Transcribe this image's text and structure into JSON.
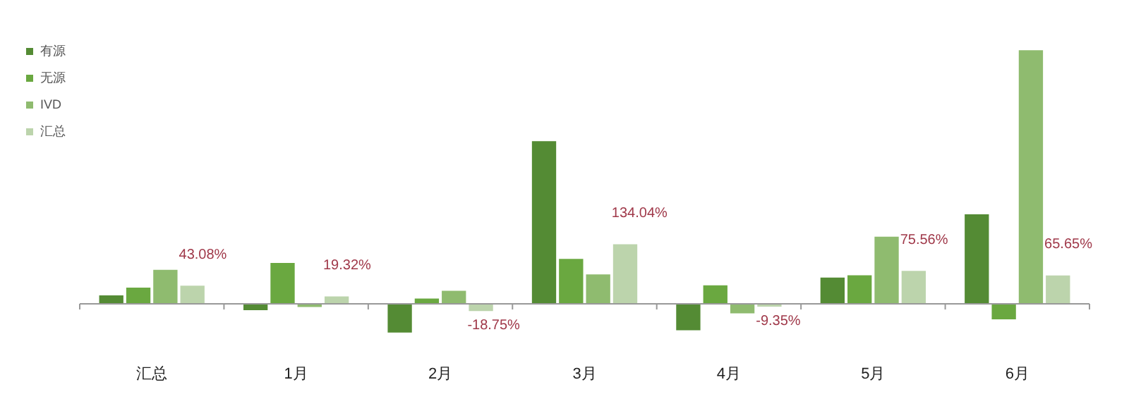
{
  "chart_data": {
    "type": "bar",
    "tick_labels": "x",
    "legend": "left",
    "categories": [
      "汇总",
      "1月",
      "2月",
      "3月",
      "4月",
      "5月",
      "6月"
    ],
    "series": [
      {
        "name": "有源",
        "color": "#548b34",
        "values": [
          22,
          -17,
          -66,
          361,
          -61,
          61,
          200
        ]
      },
      {
        "name": "无源",
        "color": "#6aa840",
        "values": [
          39,
          93,
          15,
          102,
          44,
          66,
          -37
        ]
      },
      {
        "name": "IVD",
        "color": "#8fbb6f",
        "values": [
          78,
          -10,
          32,
          68,
          -24,
          151,
          561
        ]
      },
      {
        "name": "汇总",
        "color": "#bcd4ac",
        "values": [
          43.08,
          19.32,
          -18.75,
          134.04,
          -9.35,
          75.56,
          65.65
        ],
        "value_labels": [
          "43.08%",
          "19.32%",
          "-18.75%",
          "134.04%",
          "-9.35%",
          "75.56%",
          "65.65%"
        ]
      }
    ]
  }
}
